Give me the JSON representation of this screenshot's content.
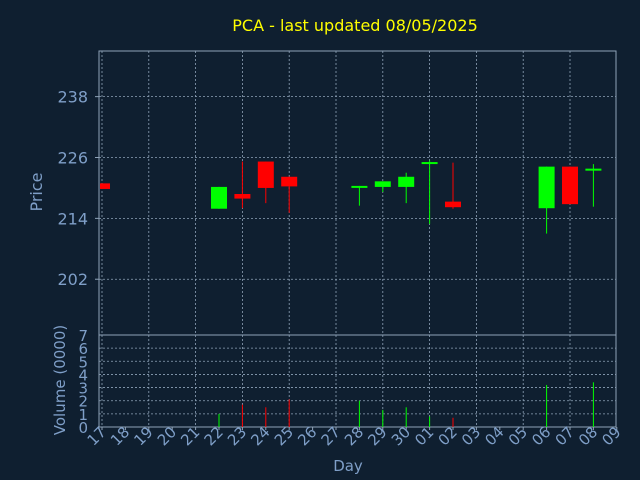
{
  "chart_data": {
    "type": "candlestick",
    "title": "PCA - last updated 08/05/2025",
    "xlabel": "Day",
    "ylabel_price": "Price",
    "ylabel_volume": "Volume (0000)",
    "price_ticks": [
      "238",
      "226",
      "214",
      "202"
    ],
    "price_tick_values": [
      238,
      226,
      214,
      202
    ],
    "price_ylim": [
      191,
      247
    ],
    "volume_ticks": [
      "0",
      "1",
      "2",
      "3",
      "4",
      "5",
      "6",
      "7"
    ],
    "volume_ylim": [
      0,
      7
    ],
    "x_labels": [
      "17",
      "18",
      "19",
      "20",
      "21",
      "22",
      "23",
      "24",
      "25",
      "26",
      "27",
      "28",
      "29",
      "30",
      "01",
      "02",
      "03",
      "04",
      "05",
      "06",
      "07",
      "08",
      "09"
    ],
    "grid": true,
    "colors": {
      "background": "#0f1f30",
      "title": "#ffff00",
      "axis_text": "#7f9fc8",
      "grid": "#8fa3b8",
      "up": "#00ff00",
      "down": "#ff0000"
    },
    "candles": [
      {
        "day": "17",
        "open": 220.9,
        "high": 220.9,
        "low": 219.8,
        "close": 219.8
      },
      {
        "day": "22",
        "open": 215.9,
        "high": 220.2,
        "low": 215.9,
        "close": 220.2
      },
      {
        "day": "23",
        "open": 218.8,
        "high": 225.2,
        "low": 216.0,
        "close": 217.9
      },
      {
        "day": "24",
        "open": 225.2,
        "high": 225.2,
        "low": 217.0,
        "close": 220.0
      },
      {
        "day": "25",
        "open": 222.2,
        "high": 222.2,
        "low": 215.1,
        "close": 220.3
      },
      {
        "day": "28",
        "open": 220.2,
        "high": 220.4,
        "low": 216.5,
        "close": 220.4
      },
      {
        "day": "29",
        "open": 220.2,
        "high": 221.3,
        "low": 219.2,
        "close": 221.3
      },
      {
        "day": "30",
        "open": 220.2,
        "high": 223.0,
        "low": 217.0,
        "close": 222.2
      },
      {
        "day": "01",
        "open": 225.1,
        "high": 225.4,
        "low": 212.9,
        "close": 225.1
      },
      {
        "day": "02",
        "open": 217.3,
        "high": 225.0,
        "low": 215.9,
        "close": 216.2
      },
      {
        "day": "06",
        "open": 216.0,
        "high": 224.2,
        "low": 211.0,
        "close": 224.2
      },
      {
        "day": "07",
        "open": 224.2,
        "high": 224.2,
        "low": 216.8,
        "close": 216.8
      },
      {
        "day": "08",
        "open": 223.5,
        "high": 224.7,
        "low": 216.3,
        "close": 223.8
      }
    ],
    "volumes": [
      {
        "day": "22",
        "value": 1.0,
        "dir": "up"
      },
      {
        "day": "23",
        "value": 1.7,
        "dir": "down"
      },
      {
        "day": "24",
        "value": 1.5,
        "dir": "down"
      },
      {
        "day": "25",
        "value": 2.1,
        "dir": "down"
      },
      {
        "day": "28",
        "value": 2.0,
        "dir": "up"
      },
      {
        "day": "29",
        "value": 1.3,
        "dir": "up"
      },
      {
        "day": "30",
        "value": 1.5,
        "dir": "up"
      },
      {
        "day": "01",
        "value": 0.8,
        "dir": "up"
      },
      {
        "day": "02",
        "value": 0.7,
        "dir": "down"
      },
      {
        "day": "06",
        "value": 3.2,
        "dir": "up"
      },
      {
        "day": "08",
        "value": 3.4,
        "dir": "up"
      }
    ]
  }
}
